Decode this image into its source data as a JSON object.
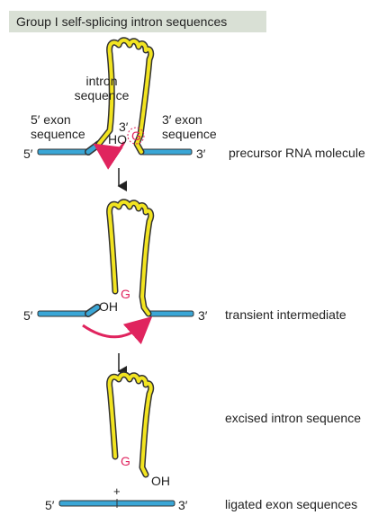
{
  "title": "Group I self-splicing intron sequences",
  "stage1": {
    "intron_line1": "intron",
    "intron_line2": "sequence",
    "exon5_line1": "5′ exon",
    "exon5_line2": "sequence",
    "exon3_line1": "3′ exon",
    "exon3_line2": "sequence",
    "three_prime_label": "3′",
    "ho": "HO",
    "g": "G",
    "end5": "5′",
    "end3": "3′",
    "caption": "precursor RNA molecule"
  },
  "stage2": {
    "oh": "OH",
    "g": "G",
    "end5": "5′",
    "end3": "3′",
    "caption": "transient intermediate"
  },
  "stage3": {
    "g": "G",
    "oh": "OH",
    "caption": "excised intron sequence"
  },
  "stage4": {
    "plus": "+",
    "end5": "5′",
    "end3": "3′",
    "caption": "ligated exon sequences"
  },
  "colors": {
    "exon": "#3aa6d6",
    "intron": "#f2e420",
    "outline": "#333333",
    "accent": "#e0245e"
  }
}
